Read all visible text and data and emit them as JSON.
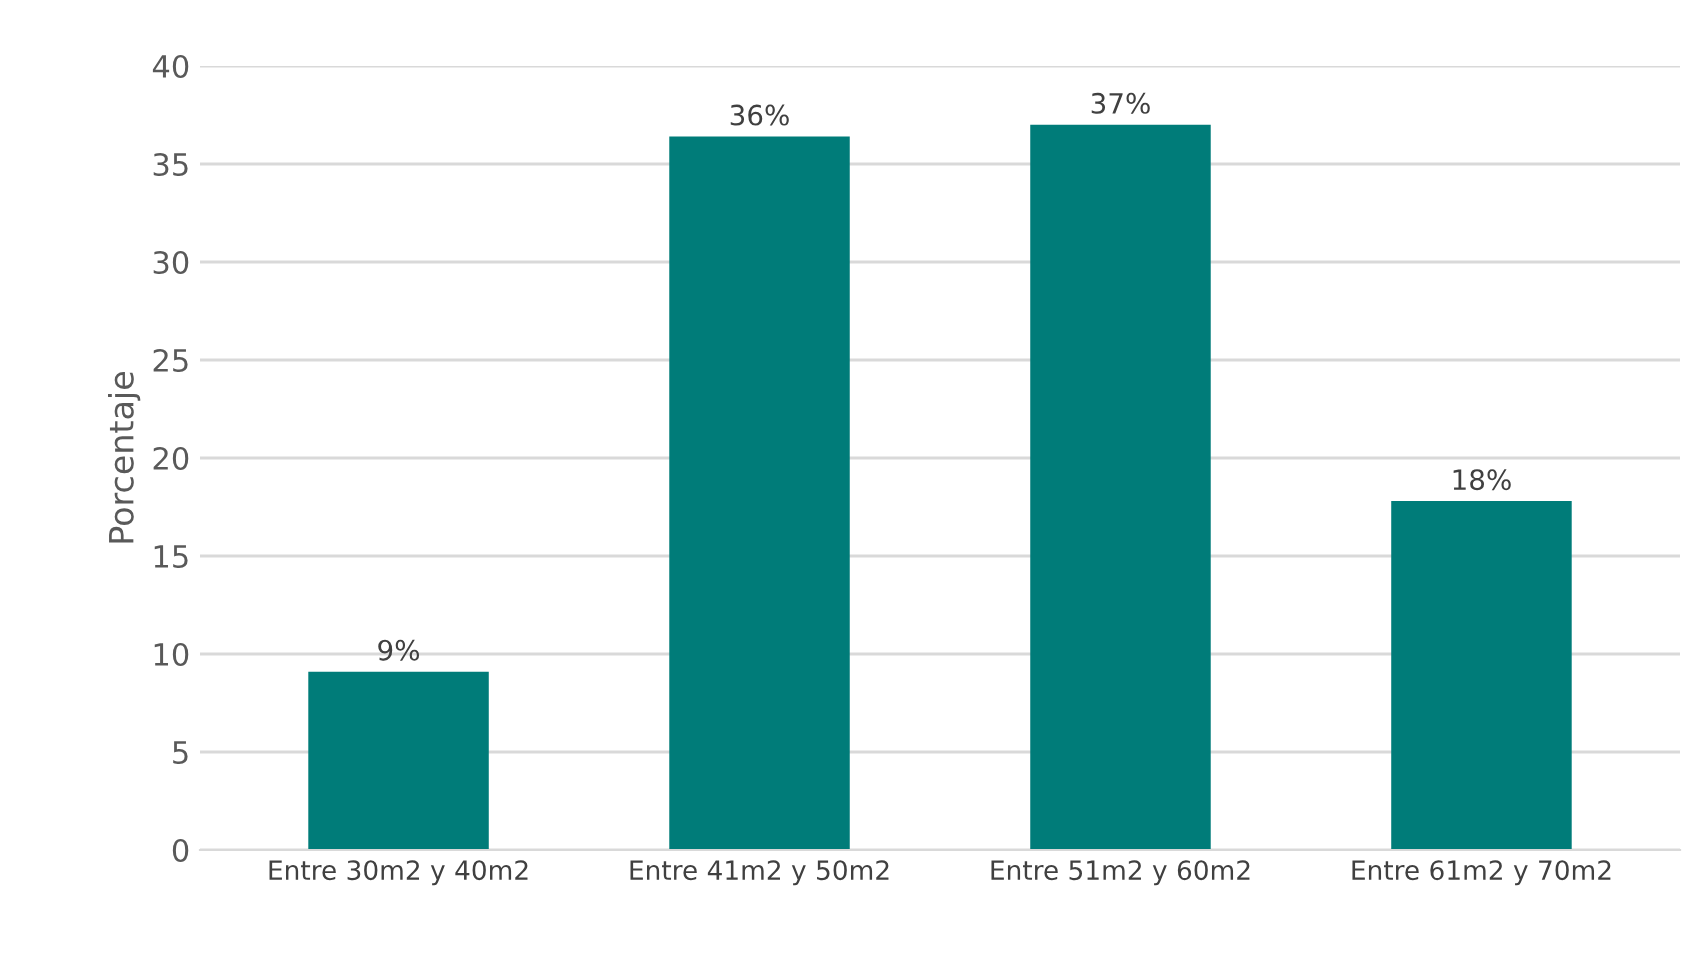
{
  "chart_data": {
    "type": "bar",
    "ylabel": "Porcentaje",
    "categories": [
      "Entre 30m2 y 40m2",
      "Entre 41m2 y 50m2",
      "Entre 51m2 y 60m2",
      "Entre 61m2 y 70m2"
    ],
    "values": [
      9.1,
      36.4,
      37.0,
      17.8
    ],
    "value_labels": [
      "9%",
      "36%",
      "37%",
      "18%"
    ],
    "color": "#007c79",
    "ylim": [
      0,
      40
    ],
    "yticks": [
      0,
      5,
      10,
      15,
      20,
      25,
      30,
      35,
      40
    ],
    "grid": "y"
  }
}
